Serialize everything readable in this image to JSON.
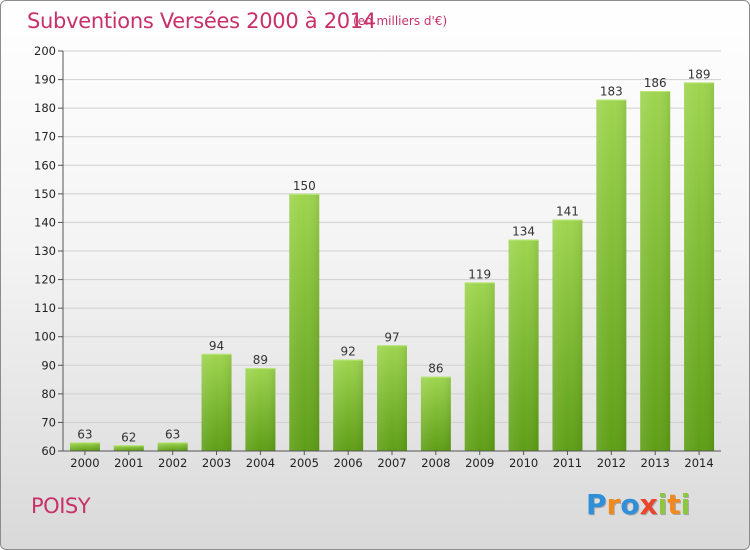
{
  "title": "Subventions Versées 2000 à 2014",
  "unit_note": "(en milliers d'€)",
  "commune": "POISY",
  "logo": {
    "text": "Proxiti",
    "letters": [
      {
        "ch": "P",
        "color": "#2f8fd8"
      },
      {
        "ch": "r",
        "color": "#f08a1e"
      },
      {
        "ch": "o",
        "color": "#2f8fd8"
      },
      {
        "ch": "x",
        "color": "#e8452c"
      },
      {
        "ch": "i",
        "color": "#8dc63f"
      },
      {
        "ch": "t",
        "color": "#f08a1e"
      },
      {
        "ch": "i",
        "color": "#8dc63f"
      }
    ]
  },
  "colors": {
    "bar_top": "#9ed54f",
    "bar_bottom": "#5e9e16",
    "grid": "#d0d0d0",
    "axis": "#555555",
    "accent": "#c8306a"
  },
  "chart_data": {
    "type": "bar",
    "title": "Subventions Versées 2000 à 2014",
    "categories": [
      "2000",
      "2001",
      "2002",
      "2003",
      "2004",
      "2005",
      "2006",
      "2007",
      "2008",
      "2009",
      "2010",
      "2011",
      "2012",
      "2013",
      "2014"
    ],
    "values": [
      63,
      62,
      63,
      94,
      89,
      150,
      92,
      97,
      86,
      119,
      134,
      141,
      183,
      186,
      189
    ],
    "ylim": [
      60,
      200
    ],
    "yticks": [
      60,
      70,
      80,
      90,
      100,
      110,
      120,
      130,
      140,
      150,
      160,
      170,
      180,
      190,
      200
    ],
    "grid": true,
    "xlabel": "",
    "ylabel": ""
  }
}
